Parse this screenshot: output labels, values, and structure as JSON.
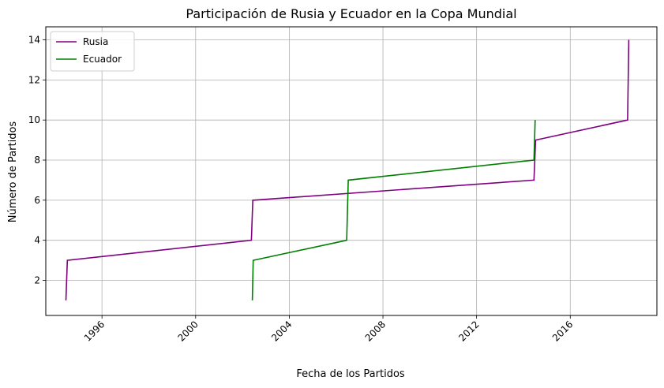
{
  "chart_data": {
    "type": "line",
    "title": "Participación de Rusia y Ecuador en la Copa Mundial",
    "xlabel": "Fecha de los Partidos",
    "ylabel": "Número de Partidos",
    "xlim": [
      1993.6,
      2019.7
    ],
    "ylim": [
      0.25,
      14.65
    ],
    "xticks": [
      1996,
      2000,
      2004,
      2008,
      2012,
      2016
    ],
    "xtick_labels": [
      "1996",
      "2000",
      "2004",
      "2008",
      "2012",
      "2016"
    ],
    "yticks": [
      2,
      4,
      6,
      8,
      10,
      12,
      14
    ],
    "ytick_labels": [
      "2",
      "4",
      "6",
      "8",
      "10",
      "12",
      "14"
    ],
    "grid": true,
    "legend_position": "upper-left",
    "series": [
      {
        "name": "Rusia",
        "color": "#800080",
        "x": [
          1994.46,
          1994.52,
          2002.38,
          2002.44,
          2014.45,
          2014.52,
          2018.45,
          2018.5
        ],
        "y": [
          1,
          3,
          4,
          6,
          7,
          9,
          10,
          14
        ]
      },
      {
        "name": "Ecuador",
        "color": "#008000",
        "x": [
          2002.42,
          2002.46,
          2006.45,
          2006.52,
          2014.45,
          2014.5
        ],
        "y": [
          1,
          3,
          4,
          7,
          8,
          10
        ]
      }
    ]
  }
}
